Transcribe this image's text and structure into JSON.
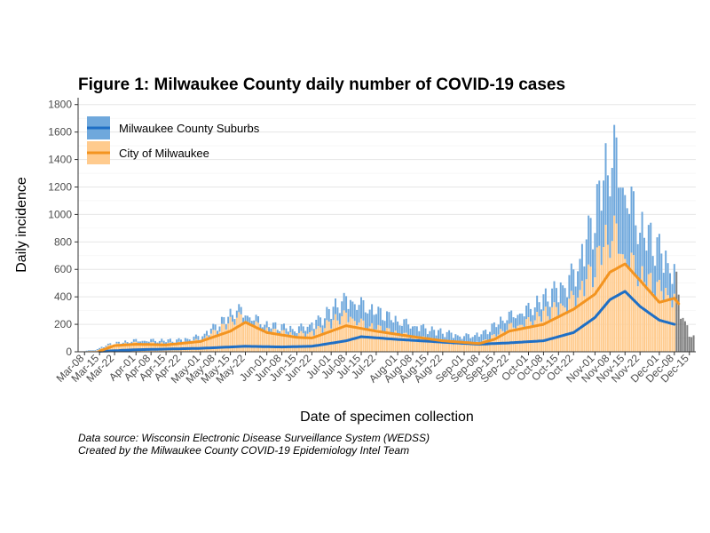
{
  "chart_data": {
    "type": "bar",
    "title": "Figure 1: Milwaukee County daily number of COVID-19 cases",
    "xlabel": "Date of specimen collection",
    "ylabel": "Daily incidence",
    "ylim": [
      0,
      1850
    ],
    "yticks": [
      0,
      200,
      400,
      600,
      800,
      1000,
      1200,
      1400,
      1600,
      1800
    ],
    "xticks": [
      "Mar-08",
      "Mar-15",
      "Mar-22",
      "Apr-01",
      "Apr-08",
      "Apr-15",
      "Apr-22",
      "May-01",
      "May-08",
      "May-15",
      "May-22",
      "Jun-01",
      "Jun-08",
      "Jun-15",
      "Jun-22",
      "Jul-01",
      "Jul-08",
      "Jul-15",
      "Jul-22",
      "Aug-01",
      "Aug-08",
      "Aug-15",
      "Aug-22",
      "Sep-01",
      "Sep-08",
      "Sep-15",
      "Sep-22",
      "Oct-01",
      "Oct-08",
      "Oct-15",
      "Oct-22",
      "Nov-01",
      "Nov-08",
      "Nov-15",
      "Nov-22",
      "Dec-01",
      "Dec-08",
      "Dec-15"
    ],
    "x_range": [
      "2020-03-05",
      "2020-12-18"
    ],
    "grid": true,
    "legend_position": "top-left",
    "stacked": true,
    "series": [
      {
        "name": "Milwaukee County Suburbs",
        "bar_color": "#6fa8dc",
        "line_color": "#1f6fc5",
        "smoothed_trend": [
          [
            "2020-03-15",
            3
          ],
          [
            "2020-04-01",
            15
          ],
          [
            "2020-05-01",
            25
          ],
          [
            "2020-05-22",
            40
          ],
          [
            "2020-06-08",
            35
          ],
          [
            "2020-06-22",
            40
          ],
          [
            "2020-07-08",
            80
          ],
          [
            "2020-07-15",
            110
          ],
          [
            "2020-08-01",
            90
          ],
          [
            "2020-08-22",
            70
          ],
          [
            "2020-09-08",
            55
          ],
          [
            "2020-09-22",
            65
          ],
          [
            "2020-10-08",
            80
          ],
          [
            "2020-10-22",
            140
          ],
          [
            "2020-11-01",
            250
          ],
          [
            "2020-11-08",
            380
          ],
          [
            "2020-11-15",
            440
          ],
          [
            "2020-11-22",
            330
          ],
          [
            "2020-12-01",
            230
          ],
          [
            "2020-12-08",
            200
          ]
        ]
      },
      {
        "name": "City of Milwaukee",
        "bar_color": "#ffcb8e",
        "line_color": "#f39420",
        "smoothed_trend": [
          [
            "2020-03-15",
            5
          ],
          [
            "2020-03-22",
            45
          ],
          [
            "2020-04-01",
            55
          ],
          [
            "2020-04-15",
            50
          ],
          [
            "2020-05-01",
            75
          ],
          [
            "2020-05-15",
            150
          ],
          [
            "2020-05-22",
            215
          ],
          [
            "2020-06-01",
            140
          ],
          [
            "2020-06-15",
            105
          ],
          [
            "2020-06-22",
            100
          ],
          [
            "2020-07-01",
            150
          ],
          [
            "2020-07-08",
            190
          ],
          [
            "2020-07-22",
            150
          ],
          [
            "2020-08-08",
            110
          ],
          [
            "2020-08-22",
            80
          ],
          [
            "2020-09-08",
            60
          ],
          [
            "2020-09-15",
            90
          ],
          [
            "2020-09-22",
            150
          ],
          [
            "2020-10-08",
            200
          ],
          [
            "2020-10-22",
            310
          ],
          [
            "2020-11-01",
            420
          ],
          [
            "2020-11-08",
            580
          ],
          [
            "2020-11-15",
            640
          ],
          [
            "2020-11-22",
            520
          ],
          [
            "2020-12-01",
            360
          ],
          [
            "2020-12-08",
            390
          ],
          [
            "2020-12-10",
            350
          ]
        ]
      }
    ],
    "bar_envelope_total": [
      [
        "2020-03-12",
        10
      ],
      [
        "2020-03-20",
        55
      ],
      [
        "2020-04-01",
        80
      ],
      [
        "2020-04-20",
        80
      ],
      [
        "2020-05-01",
        110
      ],
      [
        "2020-05-10",
        200
      ],
      [
        "2020-05-18",
        300
      ],
      [
        "2020-05-22",
        270
      ],
      [
        "2020-06-01",
        190
      ],
      [
        "2020-06-15",
        160
      ],
      [
        "2020-06-25",
        220
      ],
      [
        "2020-07-05",
        350
      ],
      [
        "2020-07-10",
        370
      ],
      [
        "2020-07-20",
        300
      ],
      [
        "2020-08-01",
        220
      ],
      [
        "2020-08-15",
        160
      ],
      [
        "2020-09-01",
        110
      ],
      [
        "2020-09-10",
        130
      ],
      [
        "2020-09-20",
        240
      ],
      [
        "2020-10-01",
        300
      ],
      [
        "2020-10-15",
        450
      ],
      [
        "2020-10-22",
        550
      ],
      [
        "2020-11-01",
        950
      ],
      [
        "2020-11-05",
        1250
      ],
      [
        "2020-11-10",
        1400
      ],
      [
        "2020-11-15",
        1150
      ],
      [
        "2020-11-22",
        880
      ],
      [
        "2020-12-01",
        720
      ],
      [
        "2020-12-08",
        580
      ],
      [
        "2020-12-11",
        300
      ],
      [
        "2020-12-16",
        100
      ]
    ],
    "greyed_recent_from": "2020-12-09",
    "greyed_color": "#555555"
  },
  "caption": {
    "line1": "Data source: Wisconsin Electronic Disease Surveillance System (WEDSS)",
    "line2": "Created by the Milwaukee County COVID-19 Epidemiology Intel Team"
  }
}
